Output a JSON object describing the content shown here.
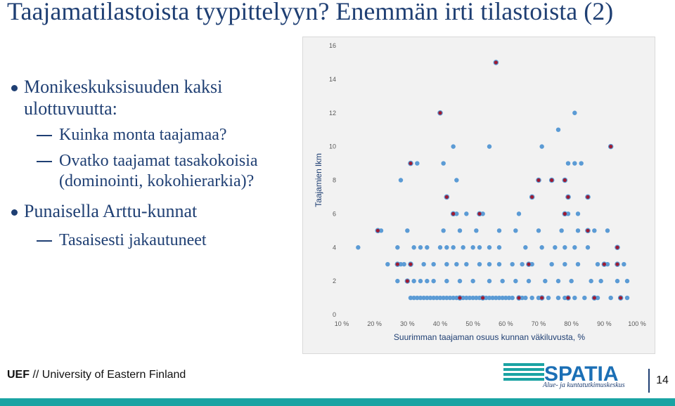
{
  "slide": {
    "title": "Taajamatilastoista tyypittelyyn? Enemmän irti tilastoista (2)",
    "bullets": [
      {
        "text": "Monikeskuksisuuden kaksi ulottuvuutta:",
        "sub": [
          "Kuinka monta taajamaa?",
          "Ovatko taajamat tasakokoisia (dominointi, kokohierarkia)?"
        ]
      },
      {
        "text": "Punaisella Arttu-kunnat",
        "sub": [
          "Tasaisesti jakautuneet"
        ]
      }
    ],
    "page_number": "14"
  },
  "footer": {
    "org_short": "UEF",
    "org_sep": " // ",
    "org_name": "University of Eastern Finland"
  },
  "logo": {
    "name": "SPATIA",
    "tagline": "Alue- ja kuntatutkimuskeskus",
    "color": "#1b6fb5",
    "stripe_color": "#1aa3a3"
  },
  "colors": {
    "title": "#1f3f73",
    "point_blue": "#5b9bd5",
    "point_red": "#9e1b32",
    "bar": "#1aa3a3"
  },
  "chart_data": {
    "type": "scatter",
    "xlabel": "Suurimman taajaman osuus kunnan väkiluvusta, %",
    "ylabel": "Taajamien lkm",
    "xlim": [
      0.1,
      1.0
    ],
    "ylim": [
      0,
      16
    ],
    "xticks": [
      "10 %",
      "20 %",
      "30 %",
      "40 %",
      "50 %",
      "60 %",
      "70 %",
      "80 %",
      "90 %",
      "100 %"
    ],
    "yticks": [
      "0",
      "2",
      "4",
      "6",
      "8",
      "10",
      "12",
      "14",
      "16"
    ],
    "grid": false,
    "series": [
      {
        "color": "#5b9bd5",
        "points": [
          [
            0.15,
            4
          ],
          [
            0.22,
            5
          ],
          [
            0.24,
            3
          ],
          [
            0.27,
            4
          ],
          [
            0.28,
            3
          ],
          [
            0.29,
            3
          ],
          [
            0.31,
            3
          ],
          [
            0.27,
            2
          ],
          [
            0.3,
            2
          ],
          [
            0.32,
            2
          ],
          [
            0.34,
            2
          ],
          [
            0.36,
            2
          ],
          [
            0.31,
            1
          ],
          [
            0.32,
            1
          ],
          [
            0.33,
            1
          ],
          [
            0.34,
            1
          ],
          [
            0.35,
            1
          ],
          [
            0.36,
            1
          ],
          [
            0.37,
            1
          ],
          [
            0.38,
            1
          ],
          [
            0.39,
            1
          ],
          [
            0.4,
            1
          ],
          [
            0.41,
            1
          ],
          [
            0.42,
            1
          ],
          [
            0.43,
            1
          ],
          [
            0.44,
            1
          ],
          [
            0.45,
            1
          ],
          [
            0.46,
            1
          ],
          [
            0.47,
            1
          ],
          [
            0.48,
            1
          ],
          [
            0.49,
            1
          ],
          [
            0.5,
            1
          ],
          [
            0.51,
            1
          ],
          [
            0.52,
            1
          ],
          [
            0.53,
            1
          ],
          [
            0.54,
            1
          ],
          [
            0.55,
            1
          ],
          [
            0.56,
            1
          ],
          [
            0.57,
            1
          ],
          [
            0.58,
            1
          ],
          [
            0.59,
            1
          ],
          [
            0.6,
            1
          ],
          [
            0.61,
            1
          ],
          [
            0.62,
            1
          ],
          [
            0.65,
            1
          ],
          [
            0.66,
            1
          ],
          [
            0.68,
            1
          ],
          [
            0.7,
            1
          ],
          [
            0.73,
            1
          ],
          [
            0.76,
            1
          ],
          [
            0.78,
            1
          ],
          [
            0.81,
            1
          ],
          [
            0.84,
            1
          ],
          [
            0.88,
            1
          ],
          [
            0.92,
            1
          ],
          [
            0.95,
            1
          ],
          [
            0.97,
            1
          ],
          [
            0.28,
            8
          ],
          [
            0.33,
            9
          ],
          [
            0.41,
            9
          ],
          [
            0.44,
            10
          ],
          [
            0.45,
            8
          ],
          [
            0.55,
            10
          ],
          [
            0.71,
            10
          ],
          [
            0.76,
            11
          ],
          [
            0.81,
            12
          ],
          [
            0.79,
            9
          ],
          [
            0.81,
            9
          ],
          [
            0.83,
            9
          ],
          [
            0.32,
            4
          ],
          [
            0.34,
            4
          ],
          [
            0.36,
            4
          ],
          [
            0.4,
            4
          ],
          [
            0.42,
            4
          ],
          [
            0.44,
            4
          ],
          [
            0.47,
            4
          ],
          [
            0.5,
            4
          ],
          [
            0.52,
            4
          ],
          [
            0.55,
            4
          ],
          [
            0.58,
            4
          ],
          [
            0.66,
            4
          ],
          [
            0.71,
            4
          ],
          [
            0.75,
            4
          ],
          [
            0.78,
            4
          ],
          [
            0.81,
            4
          ],
          [
            0.85,
            4
          ],
          [
            0.3,
            5
          ],
          [
            0.41,
            5
          ],
          [
            0.46,
            5
          ],
          [
            0.51,
            5
          ],
          [
            0.58,
            5
          ],
          [
            0.63,
            5
          ],
          [
            0.7,
            5
          ],
          [
            0.77,
            5
          ],
          [
            0.82,
            5
          ],
          [
            0.87,
            5
          ],
          [
            0.91,
            5
          ],
          [
            0.45,
            6
          ],
          [
            0.48,
            6
          ],
          [
            0.53,
            6
          ],
          [
            0.64,
            6
          ],
          [
            0.79,
            6
          ],
          [
            0.82,
            6
          ],
          [
            0.35,
            3
          ],
          [
            0.38,
            3
          ],
          [
            0.42,
            3
          ],
          [
            0.45,
            3
          ],
          [
            0.48,
            3
          ],
          [
            0.52,
            3
          ],
          [
            0.55,
            3
          ],
          [
            0.58,
            3
          ],
          [
            0.62,
            3
          ],
          [
            0.65,
            3
          ],
          [
            0.68,
            3
          ],
          [
            0.74,
            3
          ],
          [
            0.78,
            3
          ],
          [
            0.82,
            3
          ],
          [
            0.88,
            3
          ],
          [
            0.91,
            3
          ],
          [
            0.96,
            3
          ],
          [
            0.38,
            2
          ],
          [
            0.42,
            2
          ],
          [
            0.46,
            2
          ],
          [
            0.5,
            2
          ],
          [
            0.55,
            2
          ],
          [
            0.59,
            2
          ],
          [
            0.63,
            2
          ],
          [
            0.67,
            2
          ],
          [
            0.72,
            2
          ],
          [
            0.76,
            2
          ],
          [
            0.8,
            2
          ],
          [
            0.86,
            2
          ],
          [
            0.89,
            2
          ],
          [
            0.94,
            2
          ],
          [
            0.97,
            2
          ]
        ]
      },
      {
        "color": "#9e1b32",
        "points": [
          [
            0.57,
            15
          ],
          [
            0.4,
            12
          ],
          [
            0.31,
            9
          ],
          [
            0.92,
            10
          ],
          [
            0.7,
            8
          ],
          [
            0.74,
            8
          ],
          [
            0.42,
            7
          ],
          [
            0.68,
            7
          ],
          [
            0.85,
            7
          ],
          [
            0.78,
            8
          ],
          [
            0.79,
            7
          ],
          [
            0.21,
            5
          ],
          [
            0.44,
            6
          ],
          [
            0.52,
            6
          ],
          [
            0.78,
            6
          ],
          [
            0.85,
            5
          ],
          [
            0.94,
            4
          ],
          [
            0.27,
            3
          ],
          [
            0.31,
            3
          ],
          [
            0.67,
            3
          ],
          [
            0.9,
            3
          ],
          [
            0.94,
            3
          ],
          [
            0.3,
            2
          ],
          [
            0.46,
            1
          ],
          [
            0.53,
            1
          ],
          [
            0.64,
            1
          ],
          [
            0.71,
            1
          ],
          [
            0.79,
            1
          ],
          [
            0.87,
            1
          ],
          [
            0.95,
            1
          ]
        ]
      }
    ]
  }
}
